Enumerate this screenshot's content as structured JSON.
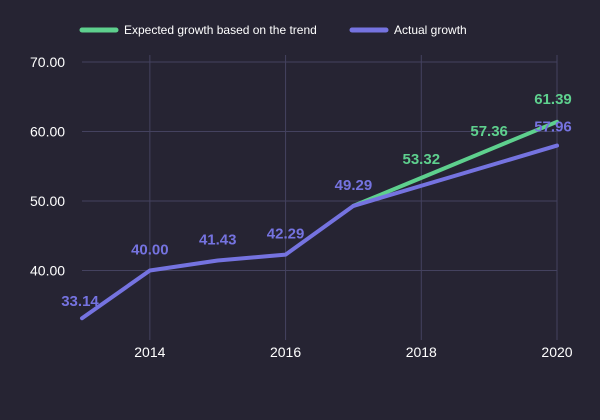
{
  "chart_data": {
    "type": "line",
    "title": "",
    "xlabel": "",
    "ylabel": "",
    "x": [
      2013,
      2014,
      2015,
      2016,
      2017,
      2018,
      2019,
      2020
    ],
    "x_ticks": [
      "2014",
      "2016",
      "2018",
      "2020"
    ],
    "y_ticks": [
      "40.00",
      "50.00",
      "60.00",
      "70.00"
    ],
    "xlim": [
      2013,
      2020
    ],
    "ylim": [
      30,
      71
    ],
    "grid": true,
    "legend_position": "top-left",
    "background": "#262433",
    "series": [
      {
        "name": "Expected growth based on the trend",
        "color": "#5ed08e",
        "x": [
          2017,
          2018,
          2019,
          2020
        ],
        "values": [
          49.29,
          53.32,
          57.36,
          61.39
        ],
        "labels": [
          "",
          "53.32",
          "57.36",
          "61.39"
        ]
      },
      {
        "name": "Actual growth",
        "color": "#7573e0",
        "x": [
          2013,
          2014,
          2015,
          2016,
          2017,
          2020
        ],
        "values": [
          33.14,
          40.0,
          41.43,
          42.29,
          49.29,
          57.96
        ],
        "labels": [
          "33.14",
          "40.00",
          "41.43",
          "42.29",
          "49.29",
          "57.96"
        ]
      }
    ]
  }
}
